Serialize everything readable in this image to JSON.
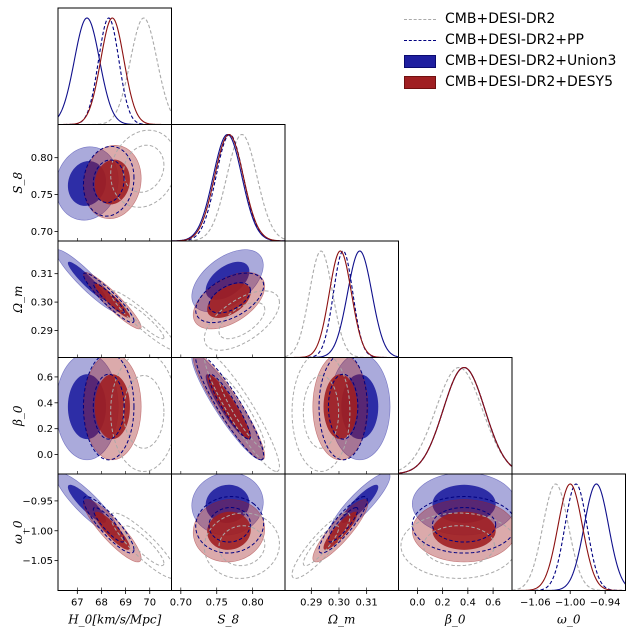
{
  "chart_data": {
    "type": "triangle-corner-plot",
    "parameters": [
      {
        "name": "H0",
        "label": "H_0[km/s/Mpc]",
        "range": [
          66.2,
          70.9
        ],
        "ticks": [
          67,
          68,
          69,
          70
        ],
        "tick_labels": [
          "67",
          "68",
          "69",
          "70"
        ]
      },
      {
        "name": "S8",
        "label": "S_8",
        "range": [
          0.687,
          0.845
        ],
        "ticks": [
          0.7,
          0.75,
          0.8
        ],
        "tick_labels": [
          "0.70",
          "0.75",
          "0.80"
        ]
      },
      {
        "name": "Om",
        "label": "Ω_m",
        "range": [
          0.2805,
          0.3215
        ],
        "ticks": [
          0.29,
          0.3,
          0.31
        ],
        "tick_labels": [
          "0.29",
          "0.30",
          "0.31"
        ]
      },
      {
        "name": "beta0",
        "label": "β_0",
        "range": [
          -0.15,
          0.75
        ],
        "ticks": [
          0.0,
          0.2,
          0.4,
          0.6
        ],
        "tick_labels": [
          "0.0",
          "0.2",
          "0.4",
          "0.6"
        ]
      },
      {
        "name": "w0",
        "label": "ω_0",
        "range": [
          -1.1,
          -0.905
        ],
        "ticks": [
          -1.06,
          -1.0,
          -0.94
        ],
        "tick_labels": [
          "−1.06",
          "−1.00",
          "−0.94"
        ]
      }
    ],
    "y_axis_labels": {
      "S8": {
        "label": "S_8",
        "ticks": [
          "0.70",
          "0.75",
          "0.80"
        ]
      },
      "Om": {
        "label": "Ω_m",
        "ticks": [
          "0.29",
          "0.30",
          "0.31"
        ]
      },
      "beta0": {
        "label": "β_0",
        "ticks": [
          "0.0",
          "0.2",
          "0.4",
          "0.6"
        ]
      },
      "w0": {
        "label": "ω_0",
        "ticks": [
          "−1.05",
          "−1.00",
          "−0.95"
        ]
      }
    },
    "series": [
      {
        "name": "CMB+DESI-DR2",
        "style": "dashed",
        "color": "#aaaaaa",
        "filled": false,
        "mean": [
          69.75,
          0.785,
          0.2935,
          0.33,
          -1.025
        ],
        "sigma": [
          0.55,
          0.021,
          0.0042,
          0.185,
          0.022
        ],
        "corr": {
          "0-1": 0.15,
          "0-2": -0.93,
          "0-3": 0.0,
          "0-4": -0.88,
          "1-2": 0.6,
          "1-3": -0.92,
          "1-4": 0.05,
          "2-3": 0.0,
          "2-4": 0.88,
          "3-4": 0.0
        }
      },
      {
        "name": "CMB+DESI-DR2+PP",
        "style": "dashed",
        "color": "#000080",
        "filled": false,
        "mean": [
          68.3,
          0.768,
          0.3015,
          0.37,
          -0.99
        ],
        "sigma": [
          0.42,
          0.019,
          0.0035,
          0.165,
          0.019
        ],
        "corr": {
          "0-1": 0.1,
          "0-2": -0.93,
          "0-3": 0.0,
          "0-4": -0.88,
          "1-2": 0.5,
          "1-3": -0.92,
          "1-4": 0.05,
          "2-3": 0.0,
          "2-4": 0.88,
          "3-4": 0.0
        }
      },
      {
        "name": "CMB+DESI-DR2+Union3",
        "style": "filled",
        "color": "#1f1fa0",
        "filled": true,
        "mean": [
          67.4,
          0.765,
          0.3075,
          0.37,
          -0.955
        ],
        "sigma": [
          0.52,
          0.02,
          0.0044,
          0.165,
          0.021
        ],
        "corr": {
          "0-1": 0.1,
          "0-2": -0.93,
          "0-3": 0.0,
          "0-4": -0.88,
          "1-2": 0.5,
          "1-3": -0.92,
          "1-4": 0.05,
          "2-3": 0.0,
          "2-4": 0.88,
          "3-4": 0.0
        }
      },
      {
        "name": "CMB+DESI-DR2+DESY5",
        "style": "filled",
        "color": "#a01f22",
        "filled": true,
        "mean": [
          68.45,
          0.767,
          0.3005,
          0.37,
          -1.0
        ],
        "sigma": [
          0.48,
          0.02,
          0.004,
          0.165,
          0.021
        ],
        "corr": {
          "0-1": 0.1,
          "0-2": -0.93,
          "0-3": 0.0,
          "0-4": -0.88,
          "1-2": 0.5,
          "1-3": -0.92,
          "1-4": 0.05,
          "2-3": 0.0,
          "2-4": 0.88,
          "3-4": 0.0
        }
      }
    ],
    "legend": {
      "placement": "top-right",
      "entries": [
        "CMB+DESI-DR2",
        "CMB+DESI-DR2+PP",
        "CMB+DESI-DR2+Union3",
        "CMB+DESI-DR2+DESY5"
      ]
    }
  }
}
